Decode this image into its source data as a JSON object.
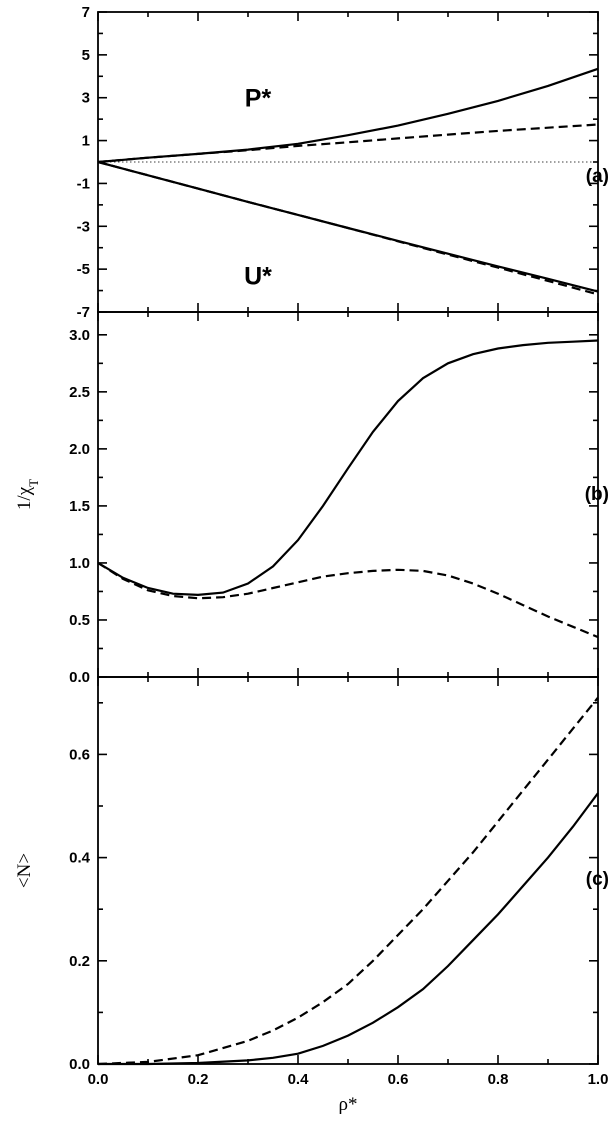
{
  "chart_data": [
    {
      "type": "line",
      "panel_label": "(a)",
      "xlim": [
        0.0,
        1.0
      ],
      "ylim": [
        -7,
        7
      ],
      "x_ticks": [
        0.0,
        0.2,
        0.4,
        0.6,
        0.8,
        1.0
      ],
      "y_tick_labels": [
        "7",
        "5",
        "3",
        "1",
        "-1",
        "-3",
        "-5",
        "-7"
      ],
      "y_tick_values": [
        7,
        5,
        3,
        1,
        -1,
        -3,
        -5,
        -7
      ],
      "ylabel": "",
      "annotations": [
        {
          "text": "P*",
          "x": 0.32,
          "y": 3.0
        },
        {
          "text": "U*",
          "x": 0.32,
          "y": -5.3
        }
      ],
      "reference_line": {
        "y": 0,
        "style": "dotted"
      },
      "series": [
        {
          "style": "solid",
          "x": [
            0.0,
            0.1,
            0.2,
            0.3,
            0.4,
            0.5,
            0.6,
            0.7,
            0.8,
            0.9,
            1.0
          ],
          "y": [
            0.0,
            0.2,
            0.38,
            0.58,
            0.85,
            1.25,
            1.7,
            2.25,
            2.85,
            3.55,
            4.35
          ]
        },
        {
          "style": "dashed",
          "x": [
            0.0,
            0.1,
            0.2,
            0.3,
            0.4,
            0.5,
            0.6,
            0.7,
            0.8,
            0.9,
            1.0
          ],
          "y": [
            0.0,
            0.2,
            0.38,
            0.55,
            0.75,
            0.92,
            1.1,
            1.28,
            1.45,
            1.6,
            1.75
          ]
        },
        {
          "style": "solid",
          "x": [
            0.0,
            0.1,
            0.2,
            0.3,
            0.4,
            0.5,
            0.6,
            0.7,
            0.8,
            0.9,
            1.0
          ],
          "y": [
            0.0,
            -0.62,
            -1.24,
            -1.86,
            -2.47,
            -3.08,
            -3.68,
            -4.28,
            -4.87,
            -5.45,
            -6.05
          ]
        },
        {
          "style": "dashed",
          "x": [
            0.0,
            0.1,
            0.2,
            0.3,
            0.4,
            0.5,
            0.6,
            0.7,
            0.8,
            0.9,
            1.0
          ],
          "y": [
            0.0,
            -0.62,
            -1.24,
            -1.86,
            -2.47,
            -3.08,
            -3.7,
            -4.32,
            -4.93,
            -5.55,
            -6.18
          ]
        }
      ]
    },
    {
      "type": "line",
      "panel_label": "(b)",
      "xlim": [
        0.0,
        1.0
      ],
      "ylim": [
        0.0,
        3.2
      ],
      "x_ticks": [
        0.0,
        0.2,
        0.4,
        0.6,
        0.8,
        1.0
      ],
      "y_tick_labels": [
        "3.0",
        "2.5",
        "2.0",
        "1.5",
        "1.0",
        "0.5",
        "0.0"
      ],
      "y_tick_values": [
        3.0,
        2.5,
        2.0,
        1.5,
        1.0,
        0.5,
        0.0
      ],
      "ylabel": "1/χ",
      "ylabel_sub": "T",
      "series": [
        {
          "style": "solid",
          "x": [
            0.0,
            0.05,
            0.1,
            0.15,
            0.2,
            0.25,
            0.3,
            0.35,
            0.4,
            0.45,
            0.5,
            0.55,
            0.6,
            0.65,
            0.7,
            0.75,
            0.8,
            0.85,
            0.9,
            0.95,
            1.0
          ],
          "y": [
            1.0,
            0.87,
            0.78,
            0.73,
            0.72,
            0.74,
            0.82,
            0.97,
            1.2,
            1.5,
            1.83,
            2.15,
            2.42,
            2.62,
            2.75,
            2.83,
            2.88,
            2.91,
            2.93,
            2.94,
            2.95
          ]
        },
        {
          "style": "dashed",
          "x": [
            0.0,
            0.05,
            0.1,
            0.15,
            0.2,
            0.25,
            0.3,
            0.35,
            0.4,
            0.45,
            0.5,
            0.55,
            0.6,
            0.65,
            0.7,
            0.75,
            0.8,
            0.85,
            0.9,
            0.95,
            1.0
          ],
          "y": [
            1.0,
            0.86,
            0.76,
            0.71,
            0.69,
            0.7,
            0.73,
            0.78,
            0.83,
            0.88,
            0.91,
            0.93,
            0.94,
            0.93,
            0.89,
            0.82,
            0.73,
            0.63,
            0.53,
            0.44,
            0.35
          ]
        }
      ]
    },
    {
      "type": "line",
      "panel_label": "(c)",
      "xlim": [
        0.0,
        1.0
      ],
      "ylim": [
        0.0,
        0.75
      ],
      "x_ticks": [
        0.0,
        0.2,
        0.4,
        0.6,
        0.8,
        1.0
      ],
      "x_tick_labels": [
        "0.0",
        "0.2",
        "0.4",
        "0.6",
        "0.8",
        "1.0"
      ],
      "y_tick_labels": [
        "0.6",
        "0.4",
        "0.2",
        "0.0"
      ],
      "y_tick_values": [
        0.6,
        0.4,
        0.2,
        0.0
      ],
      "ylabel": "<N>",
      "xlabel": "ρ*",
      "series": [
        {
          "style": "solid",
          "x": [
            0.0,
            0.1,
            0.2,
            0.3,
            0.35,
            0.4,
            0.45,
            0.5,
            0.55,
            0.6,
            0.65,
            0.7,
            0.75,
            0.8,
            0.85,
            0.9,
            0.95,
            1.0
          ],
          "y": [
            0.0,
            0.0,
            0.002,
            0.007,
            0.012,
            0.02,
            0.035,
            0.055,
            0.08,
            0.11,
            0.145,
            0.19,
            0.24,
            0.29,
            0.345,
            0.4,
            0.46,
            0.525
          ]
        },
        {
          "style": "dashed",
          "x": [
            0.0,
            0.1,
            0.2,
            0.3,
            0.35,
            0.4,
            0.45,
            0.5,
            0.55,
            0.6,
            0.65,
            0.7,
            0.75,
            0.8,
            0.85,
            0.9,
            0.95,
            1.0
          ],
          "y": [
            0.0,
            0.004,
            0.017,
            0.045,
            0.065,
            0.09,
            0.12,
            0.155,
            0.2,
            0.25,
            0.3,
            0.355,
            0.41,
            0.47,
            0.53,
            0.59,
            0.65,
            0.71
          ]
        }
      ]
    }
  ]
}
